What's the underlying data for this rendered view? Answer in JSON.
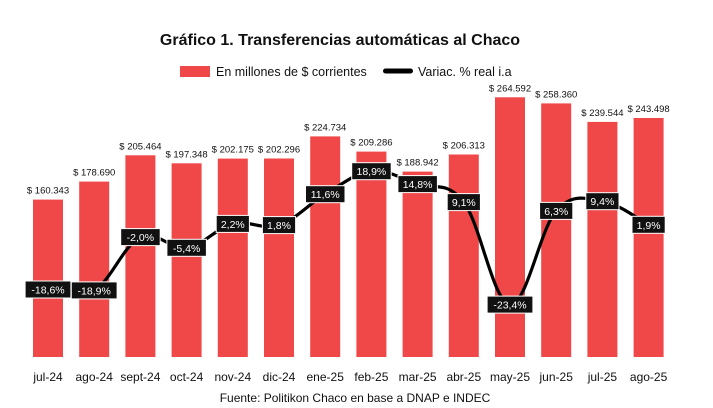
{
  "colors": {
    "bar": "#f04848",
    "line": "#000000",
    "pct_box": "#111111"
  },
  "chart_data": {
    "type": "bar",
    "title": "Gráfico 1. Transferencias automáticas al Chaco",
    "categories": [
      "jul-24",
      "ago-24",
      "sept-24",
      "oct-24",
      "nov-24",
      "dic-24",
      "ene-25",
      "feb-25",
      "mar-25",
      "abr-25",
      "may-25",
      "jun-25",
      "jul-25",
      "ago-25"
    ],
    "series": [
      {
        "name": "En millones de $ corrientes",
        "type": "bar",
        "values": [
          160343,
          178690,
          205464,
          197348,
          202175,
          202296,
          224734,
          209286,
          188942,
          206313,
          264592,
          258360,
          239544,
          243498
        ],
        "labels": [
          "$ 160.343",
          "$ 178.690",
          "$ 205.464",
          "$ 197.348",
          "$ 202.175",
          "$ 202.296",
          "$ 224.734",
          "$ 209.286",
          "$ 188.942",
          "$ 206.313",
          "$ 264.592",
          "$ 258.360",
          "$ 239.544",
          "$ 243.498"
        ]
      },
      {
        "name": "Variac. % real i.a",
        "type": "line",
        "values": [
          -18.6,
          -18.9,
          -2.0,
          -5.4,
          2.2,
          1.8,
          11.6,
          18.9,
          14.8,
          9.1,
          -23.4,
          6.3,
          9.4,
          1.9
        ],
        "labels": [
          "-18,6%",
          "-18,9%",
          "-2,0%",
          "-5,4%",
          "2,2%",
          "1,8%",
          "11,6%",
          "18,9%",
          "14,8%",
          "9,1%",
          "-23,4%",
          "6,3%",
          "9,4%",
          "1,9%"
        ]
      }
    ],
    "y_bar_range": [
      0,
      270000
    ],
    "y_line_range": [
      -40,
      44
    ],
    "legend_position": "top-center",
    "grid": false
  },
  "source": "Fuente: Politikon Chaco en base a DNAP e INDEC"
}
